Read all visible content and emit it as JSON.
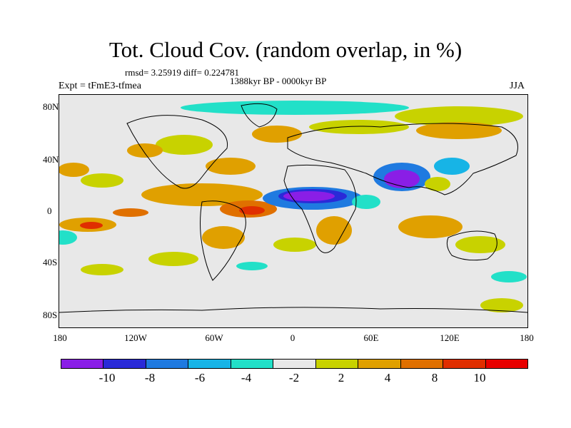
{
  "title": "Tot. Cloud Cov. (random overlap, in %)",
  "stats": "rmsd= 3.25919 diff= 0.224781",
  "period": "1388kyr BP - 0000kyr BP",
  "experiment": "Expt = tFmE3-tfmea",
  "season": "JJA",
  "axes": {
    "y_labels": [
      "80N",
      "40N",
      "0",
      "40S",
      "80S"
    ],
    "x_labels": [
      "180",
      "120W",
      "60W",
      "0",
      "60E",
      "120E",
      "180"
    ]
  },
  "colorbar": {
    "colors": [
      "#8a1ee6",
      "#2a2ad8",
      "#1f7ae0",
      "#17b4e6",
      "#22e0c8",
      "#e8e8e8",
      "#c8d200",
      "#e0a000",
      "#e07000",
      "#e02e00",
      "#e80000"
    ],
    "labels": [
      "-10",
      "-8",
      "-6",
      "-4",
      "-2",
      "2",
      "4",
      "8",
      "10"
    ]
  }
}
